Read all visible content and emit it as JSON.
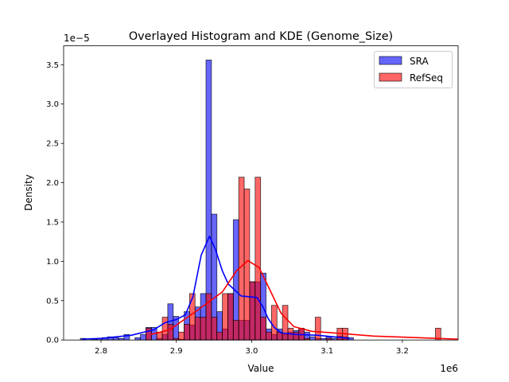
{
  "chart_data": {
    "type": "histogram+kde",
    "title": "Overlayed Histogram and KDE (Genome_Size)",
    "xlabel": "Value",
    "ylabel": "Density",
    "x_offset_text": "1e6",
    "y_offset_text": "1e−5",
    "xlim": [
      2.7504,
      3.274
    ],
    "ylim": [
      0,
      3.74
    ],
    "x_ticks": [
      2.8,
      2.9,
      3.0,
      3.1,
      3.2
    ],
    "x_tick_labels": [
      "2.8",
      "2.9",
      "3.0",
      "3.1",
      "3.2"
    ],
    "y_ticks": [
      0,
      0.5,
      1.0,
      1.5,
      2.0,
      2.5,
      3.0,
      3.5
    ],
    "y_tick_labels": [
      "0.0",
      "0.5",
      "1.0",
      "1.5",
      "2.0",
      "2.5",
      "3.0",
      "3.5"
    ],
    "grid": false,
    "legend_position": "top-right",
    "series": [
      {
        "name": "SRA",
        "color": "#0000ff",
        "fill": "#6666ff",
        "bin_start": 2.7726,
        "bin_width": 0.00725,
        "values": [
          0.02,
          0,
          0.01,
          0.02,
          0.03,
          0.04,
          0.03,
          0.02,
          0.07,
          0,
          0.03,
          0.07,
          0.16,
          0.16,
          0.02,
          0.07,
          0.46,
          0.3,
          0.01,
          0.36,
          0.19,
          0.42,
          0.59,
          3.56,
          1.6,
          0.36,
          0.14,
          0.59,
          1.53,
          0.25,
          0.25,
          0.74,
          0.74,
          0.85,
          0.14,
          0.07,
          0.14,
          0.07,
          0.1,
          0.12,
          0.14,
          0.1,
          0.04,
          0.02,
          0.02,
          0.04,
          0.02,
          0.05,
          0.04,
          0.03
        ],
        "kde": {
          "x": [
            2.775,
            2.8,
            2.84,
            2.87,
            2.885,
            2.9,
            2.912,
            2.922,
            2.933,
            2.944,
            2.952,
            2.961,
            2.969,
            2.986,
            3.007,
            3.015,
            3.022,
            3.03,
            3.039,
            3.06,
            3.088,
            3.13
          ],
          "y": [
            0.01,
            0.02,
            0.06,
            0.13,
            0.22,
            0.26,
            0.32,
            0.55,
            1.08,
            1.32,
            1.15,
            0.88,
            0.71,
            0.56,
            0.54,
            0.42,
            0.27,
            0.16,
            0.09,
            0.07,
            0.06,
            0.02
          ]
        }
      },
      {
        "name": "RefSeq",
        "color": "#ff0000",
        "fill": "#ff6666",
        "bin_start": 2.8596,
        "bin_width": 0.00725,
        "values": [
          0.15,
          0,
          0.1,
          0.29,
          0.2,
          0.02,
          0.1,
          0.2,
          0.59,
          0.29,
          0.29,
          0.59,
          0.29,
          0.1,
          0.59,
          0.59,
          0.25,
          2.07,
          1.92,
          0.74,
          2.07,
          0.29,
          0.1,
          0.44,
          0.1,
          0.44,
          0.15,
          0.1,
          0.15,
          0.02,
          0,
          0.29,
          0,
          0.02,
          0,
          0.15,
          0.15,
          0,
          0,
          0,
          0,
          0,
          0,
          0,
          0,
          0,
          0,
          0,
          0,
          0,
          0,
          0,
          0,
          0.15
        ],
        "kde": {
          "x": [
            2.866,
            2.891,
            2.927,
            2.961,
            2.98,
            2.995,
            3.01,
            3.022,
            3.039,
            3.056,
            3.08,
            3.109,
            3.162,
            3.246,
            3.274
          ],
          "y": [
            0.07,
            0.13,
            0.37,
            0.61,
            0.88,
            1.01,
            0.92,
            0.68,
            0.34,
            0.17,
            0.11,
            0.09,
            0.05,
            0.02,
            0.01
          ]
        }
      }
    ]
  }
}
